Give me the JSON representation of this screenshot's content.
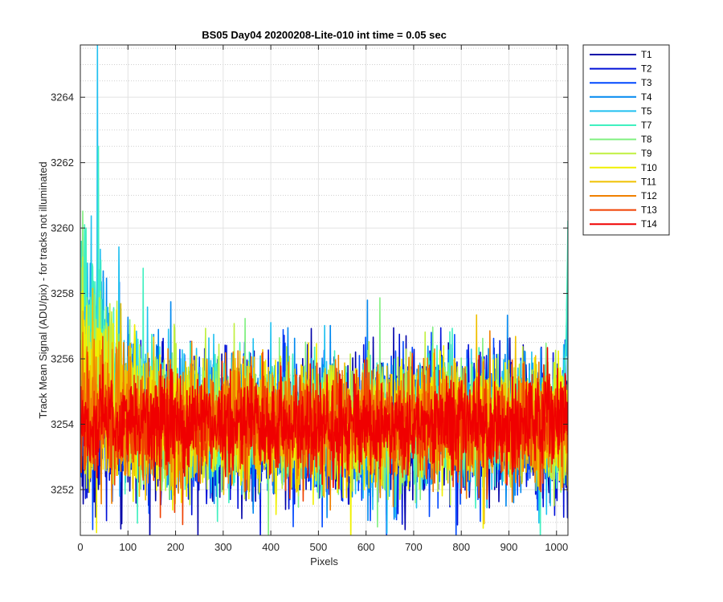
{
  "chart_data": {
    "type": "line",
    "title": "BS05 Day04 20200208-Lite-010 int time = 0.05 sec",
    "xlabel": "Pixels",
    "ylabel": "Track Mean Signal (ADU/pix) - for tracks not illuminated",
    "xlim": [
      0,
      1024
    ],
    "ylim": [
      3250.6,
      3265.6
    ],
    "xticks": [
      0,
      100,
      200,
      300,
      400,
      500,
      600,
      700,
      800,
      900,
      1000
    ],
    "yticks": [
      3252,
      3254,
      3256,
      3258,
      3260,
      3262,
      3264
    ],
    "grid": true,
    "minor_grid": true,
    "legend_position": "outside-right",
    "x_step": 1,
    "series": [
      {
        "name": "T1",
        "color": "#0000A8",
        "mean": 3253.8,
        "spread": 1.05
      },
      {
        "name": "T2",
        "color": "#0010D8",
        "mean": 3253.85,
        "spread": 1.05
      },
      {
        "name": "T3",
        "color": "#0048FF",
        "mean": 3253.9,
        "spread": 1.0
      },
      {
        "name": "T4",
        "color": "#0088F0",
        "mean": 3254.0,
        "spread": 1.0,
        "start_level": 3257.0
      },
      {
        "name": "T5",
        "color": "#20C0F0",
        "mean": 3254.0,
        "spread": 1.0,
        "start_level": 3258.0,
        "peak": {
          "x": 36,
          "y": 3265.6
        },
        "end_level": 3258.5
      },
      {
        "name": "T7",
        "color": "#40F0C0",
        "mean": 3254.0,
        "spread": 0.95,
        "start_level": 3258.3,
        "peak": {
          "x": 38,
          "y": 3262.5
        },
        "end_level": 3262.0
      },
      {
        "name": "T8",
        "color": "#80F080",
        "mean": 3254.0,
        "spread": 0.95,
        "start_level": 3256.5
      },
      {
        "name": "T9",
        "color": "#C0F040",
        "mean": 3254.0,
        "spread": 0.95,
        "start_level": 3255.8
      },
      {
        "name": "T10",
        "color": "#F0F000",
        "mean": 3254.0,
        "spread": 0.9,
        "start_level": 3255.3
      },
      {
        "name": "T11",
        "color": "#F0C000",
        "mean": 3254.0,
        "spread": 0.9,
        "start_level": 3255.0
      },
      {
        "name": "T12",
        "color": "#F08000",
        "mean": 3254.0,
        "spread": 0.85,
        "start_level": 3254.8
      },
      {
        "name": "T13",
        "color": "#F04000",
        "mean": 3254.0,
        "spread": 0.8
      },
      {
        "name": "T14",
        "color": "#F00000",
        "mean": 3254.0,
        "spread": 0.7
      }
    ]
  }
}
